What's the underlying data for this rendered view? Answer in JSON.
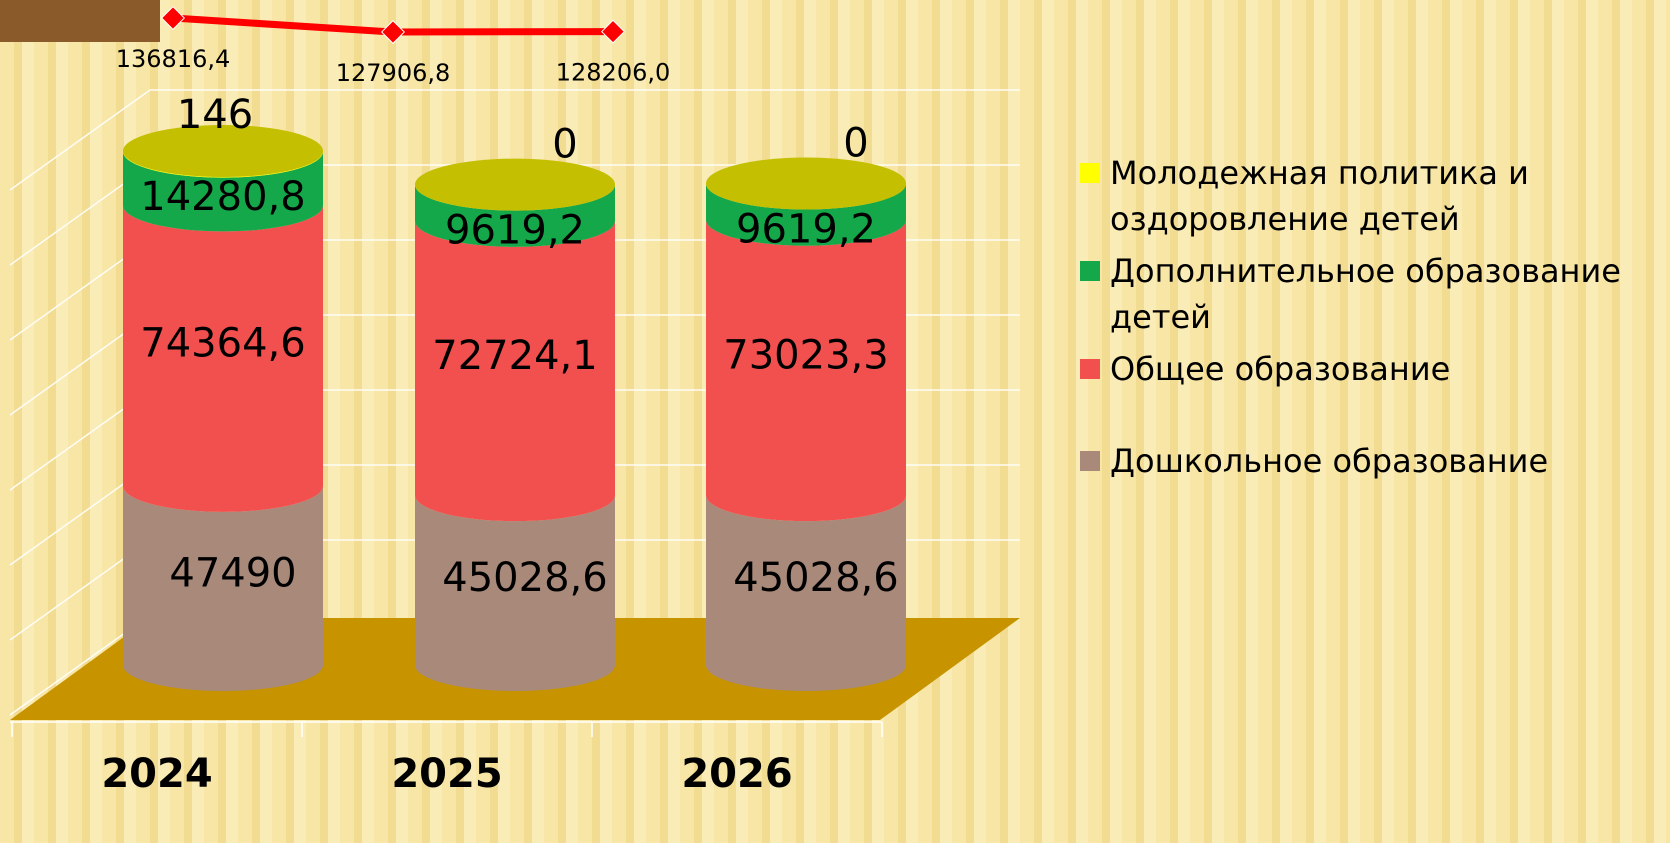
{
  "chart_data": {
    "type": "bar",
    "categories": [
      "2024",
      "2025",
      "2026"
    ],
    "ylim": [
      0,
      140000
    ],
    "y2lim": [
      100000,
      140000
    ],
    "series": [
      {
        "name": "Дошкольное образование",
        "color": "#a8897a",
        "values": [
          47490,
          45028.6,
          45028.6
        ],
        "value_labels": [
          "47490",
          "45028,6",
          "45028,6"
        ]
      },
      {
        "name": "Общее образование",
        "color": "#f24f4f",
        "values": [
          74364.6,
          72724.1,
          73023.3
        ],
        "value_labels": [
          "74364,6",
          "72724,1",
          "73023,3"
        ]
      },
      {
        "name": "Дополнительное образование детей",
        "color": "#14a84a",
        "values": [
          14280.8,
          9619.2,
          9619.2
        ],
        "value_labels": [
          "14280,8",
          "9619,2",
          "9619,2"
        ]
      },
      {
        "name": "Молодежная политика и оздоровление детей",
        "color": "#ffff00",
        "values": [
          146,
          0,
          0
        ]
      },
      {
        "type": "line",
        "axis": "y2",
        "color": "#ff0000",
        "values": [
          136816.4,
          127906.8,
          128206.0
        ],
        "value_labels": [
          "136816,4",
          "127906,8",
          "128206,0"
        ]
      }
    ]
  }
}
